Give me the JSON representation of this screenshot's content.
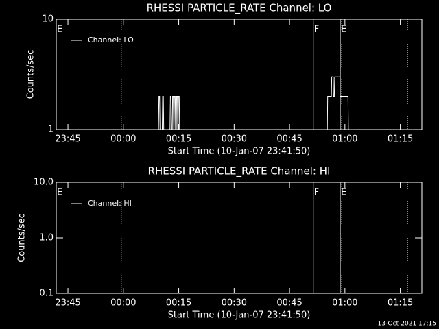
{
  "chart_data": [
    {
      "type": "line",
      "title": "RHESSI PARTICLE_RATE Channel: LO",
      "xlabel": "Start Time (10-Jan-07 23:41:50)",
      "ylabel": "Counts/sec",
      "xlim": [
        0,
        99
      ],
      "xticks": [
        {
          "value": 3.1667,
          "label": "23:45"
        },
        {
          "value": 18.1667,
          "label": "00:00"
        },
        {
          "value": 33.1667,
          "label": "00:15"
        },
        {
          "value": 48.1667,
          "label": "00:30"
        },
        {
          "value": 63.1667,
          "label": "00:45"
        },
        {
          "value": 78.1667,
          "label": "01:00"
        },
        {
          "value": 93.1667,
          "label": "01:15"
        }
      ],
      "ylim": [
        1,
        10
      ],
      "yticks": [
        1,
        10
      ],
      "log_y": true,
      "series": [
        {
          "name": "Channel: LO",
          "color": "#ffffff",
          "x": [
            0,
            27.7,
            27.8,
            28.0,
            28.1,
            28.7,
            28.8,
            29.0,
            29.1,
            30.8,
            30.9,
            31.1,
            31.2,
            31.4,
            31.5,
            31.7,
            31.8,
            31.9,
            32.0,
            32.2,
            32.3,
            32.5,
            32.6,
            32.8,
            32.9,
            33.0,
            33.1,
            33.3,
            33.4,
            73.4,
            73.5,
            74.5,
            74.6,
            75.0,
            75.1,
            75.3,
            75.4,
            76.8,
            76.9,
            79.0,
            79.1,
            99
          ],
          "values": [
            1,
            1,
            2,
            2,
            1,
            1,
            2,
            2,
            1,
            1,
            2,
            2,
            1,
            1,
            2,
            2,
            1,
            1,
            2,
            2,
            1,
            1,
            2,
            2,
            1,
            1,
            2,
            2,
            1,
            1,
            2,
            2,
            3,
            3,
            2,
            2,
            3,
            3,
            2,
            2,
            1,
            1
          ]
        }
      ],
      "events": [
        {
          "x": 0,
          "label": "E",
          "style": "none"
        },
        {
          "x": 17.6,
          "style": "dotted"
        },
        {
          "x": 69.6,
          "label": "F",
          "style": "solid"
        },
        {
          "x": 76.9,
          "label": "E",
          "style": "solid"
        },
        {
          "x": 77.3,
          "style": "dotted"
        },
        {
          "x": 95.1,
          "style": "dotted"
        }
      ]
    },
    {
      "type": "line",
      "title": "RHESSI PARTICLE_RATE Channel: HI",
      "xlabel": "Start Time (10-Jan-07 23:41:50)",
      "ylabel": "Counts/sec",
      "xlim": [
        0,
        99
      ],
      "xticks": [
        {
          "value": 3.1667,
          "label": "23:45"
        },
        {
          "value": 18.1667,
          "label": "00:00"
        },
        {
          "value": 33.1667,
          "label": "00:15"
        },
        {
          "value": 48.1667,
          "label": "00:30"
        },
        {
          "value": 63.1667,
          "label": "00:45"
        },
        {
          "value": 78.1667,
          "label": "01:00"
        },
        {
          "value": 93.1667,
          "label": "01:15"
        }
      ],
      "ylim": [
        0.1,
        10
      ],
      "yticks": [
        0.1,
        {
          "value": 1,
          "label": "1.0"
        },
        {
          "value": 10,
          "label": "10.0"
        }
      ],
      "log_y": true,
      "series": [
        {
          "name": "Channel: HI",
          "color": "#ffffff",
          "x": [],
          "values": []
        }
      ],
      "events": [
        {
          "x": 0,
          "label": "E",
          "style": "none"
        },
        {
          "x": 17.6,
          "style": "dotted"
        },
        {
          "x": 69.6,
          "label": "F",
          "style": "solid"
        },
        {
          "x": 76.9,
          "label": "E",
          "style": "solid"
        },
        {
          "x": 77.3,
          "style": "dotted"
        },
        {
          "x": 95.1,
          "style": "dotted"
        }
      ]
    }
  ],
  "footer": "13-Oct-2021 17:15"
}
